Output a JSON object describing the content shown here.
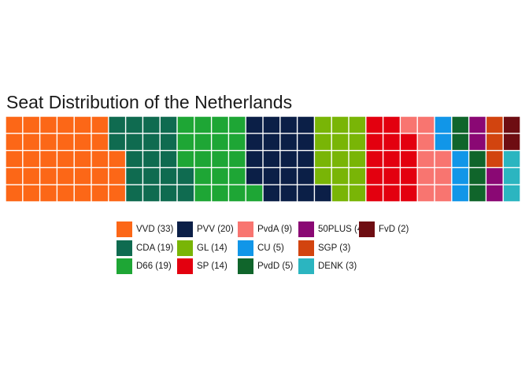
{
  "chart_data": {
    "type": "waffle",
    "title": "Seat Distribution of the Netherlands",
    "rows": 5,
    "series": [
      {
        "name": "VVD",
        "value": 33,
        "label": "VVD (33)",
        "color": "#fc6717"
      },
      {
        "name": "CDA",
        "value": 19,
        "label": "CDA (19)",
        "color": "#0f6b50"
      },
      {
        "name": "D66",
        "value": 19,
        "label": "D66 (19)",
        "color": "#1ea635"
      },
      {
        "name": "PVV",
        "value": 20,
        "label": "PVV (20)",
        "color": "#0b1f47"
      },
      {
        "name": "GL",
        "value": 14,
        "label": "GL (14)",
        "color": "#79b506"
      },
      {
        "name": "SP",
        "value": 14,
        "label": "SP (14)",
        "color": "#e3000f"
      },
      {
        "name": "PvdA",
        "value": 9,
        "label": "PvdA (9)",
        "color": "#f87570"
      },
      {
        "name": "CU",
        "value": 5,
        "label": "CU (5)",
        "color": "#1196e8"
      },
      {
        "name": "PvdD",
        "value": 5,
        "label": "PvdD (5)",
        "color": "#10652b"
      },
      {
        "name": "50PLUS",
        "value": 4,
        "label": "50PLUS (4)",
        "color": "#8a0874"
      },
      {
        "name": "SGP",
        "value": 3,
        "label": "SGP (3)",
        "color": "#d2440f"
      },
      {
        "name": "DENK",
        "value": 3,
        "label": "DENK (3)",
        "color": "#2bb5c0"
      },
      {
        "name": "FvD",
        "value": 2,
        "label": "FvD (2)",
        "color": "#6e0d12"
      }
    ],
    "legend_position": "bottom"
  }
}
